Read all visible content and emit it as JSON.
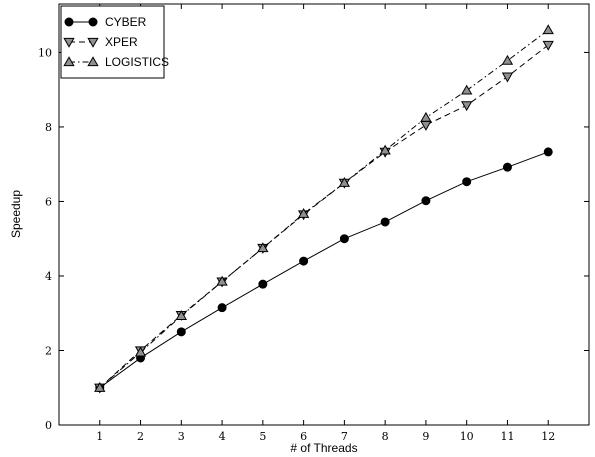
{
  "chart_data": {
    "type": "line",
    "xlabel": "# of Threads",
    "ylabel": "Speedup",
    "xlim": [
      0,
      13
    ],
    "ylim": [
      0,
      11.3
    ],
    "x_ticks": [
      1,
      2,
      3,
      4,
      5,
      6,
      7,
      8,
      9,
      10,
      11,
      12
    ],
    "y_ticks": [
      0,
      2,
      4,
      6,
      8,
      10
    ],
    "grid": false,
    "legend_position": "top-left",
    "x": [
      1,
      2,
      3,
      4,
      5,
      6,
      7,
      8,
      9,
      10,
      11,
      12
    ],
    "series": [
      {
        "name": "CYBER",
        "marker": "circle",
        "line_style": "solid",
        "color": "#000000",
        "values": [
          1.0,
          1.8,
          2.5,
          3.15,
          3.78,
          4.4,
          5.0,
          5.45,
          6.02,
          6.53,
          6.92,
          7.33
        ]
      },
      {
        "name": "XPER",
        "marker": "triangle-down",
        "line_style": "dashed",
        "color": "#000000",
        "values": [
          1.0,
          2.0,
          2.95,
          3.85,
          4.75,
          5.65,
          6.5,
          7.33,
          8.05,
          8.58,
          9.35,
          10.2
        ]
      },
      {
        "name": "LOGISTICS",
        "marker": "triangle-up",
        "line_style": "dashdot",
        "color": "#000000",
        "values": [
          1.0,
          1.95,
          2.93,
          3.85,
          4.75,
          5.67,
          6.5,
          7.37,
          8.25,
          8.98,
          9.78,
          10.6
        ]
      }
    ]
  }
}
